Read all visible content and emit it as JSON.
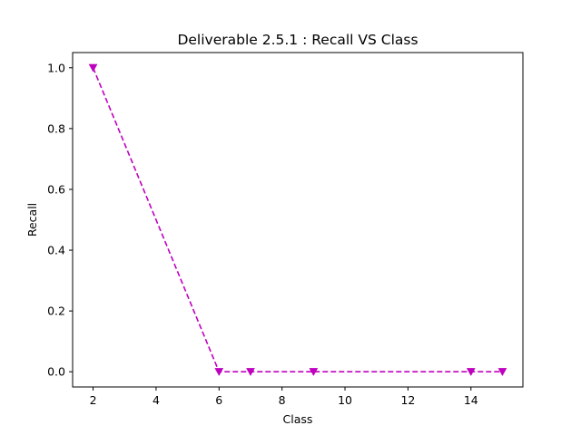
{
  "chart_data": {
    "type": "line",
    "title": "Deliverable 2.5.1 : Recall VS Class",
    "xlabel": "Class",
    "ylabel": "Recall",
    "x": [
      2,
      6,
      7,
      9,
      14,
      15
    ],
    "series": [
      {
        "values": [
          1.0,
          0.0,
          0.0,
          0.0,
          0.0,
          0.0
        ],
        "color": "#bf00bf",
        "linestyle": "dashed",
        "marker": "triangle-down"
      }
    ],
    "xlim": [
      1.35,
      15.65
    ],
    "ylim": [
      -0.05,
      1.05
    ],
    "xticks": [
      2,
      4,
      6,
      8,
      10,
      12,
      14
    ],
    "xtick_labels": [
      "2",
      "4",
      "6",
      "8",
      "10",
      "12",
      "14"
    ],
    "yticks": [
      0.0,
      0.2,
      0.4,
      0.6,
      0.8,
      1.0
    ],
    "ytick_labels": [
      "0.0",
      "0.2",
      "0.4",
      "0.6",
      "0.8",
      "1.0"
    ],
    "grid": false,
    "legend": "none"
  }
}
